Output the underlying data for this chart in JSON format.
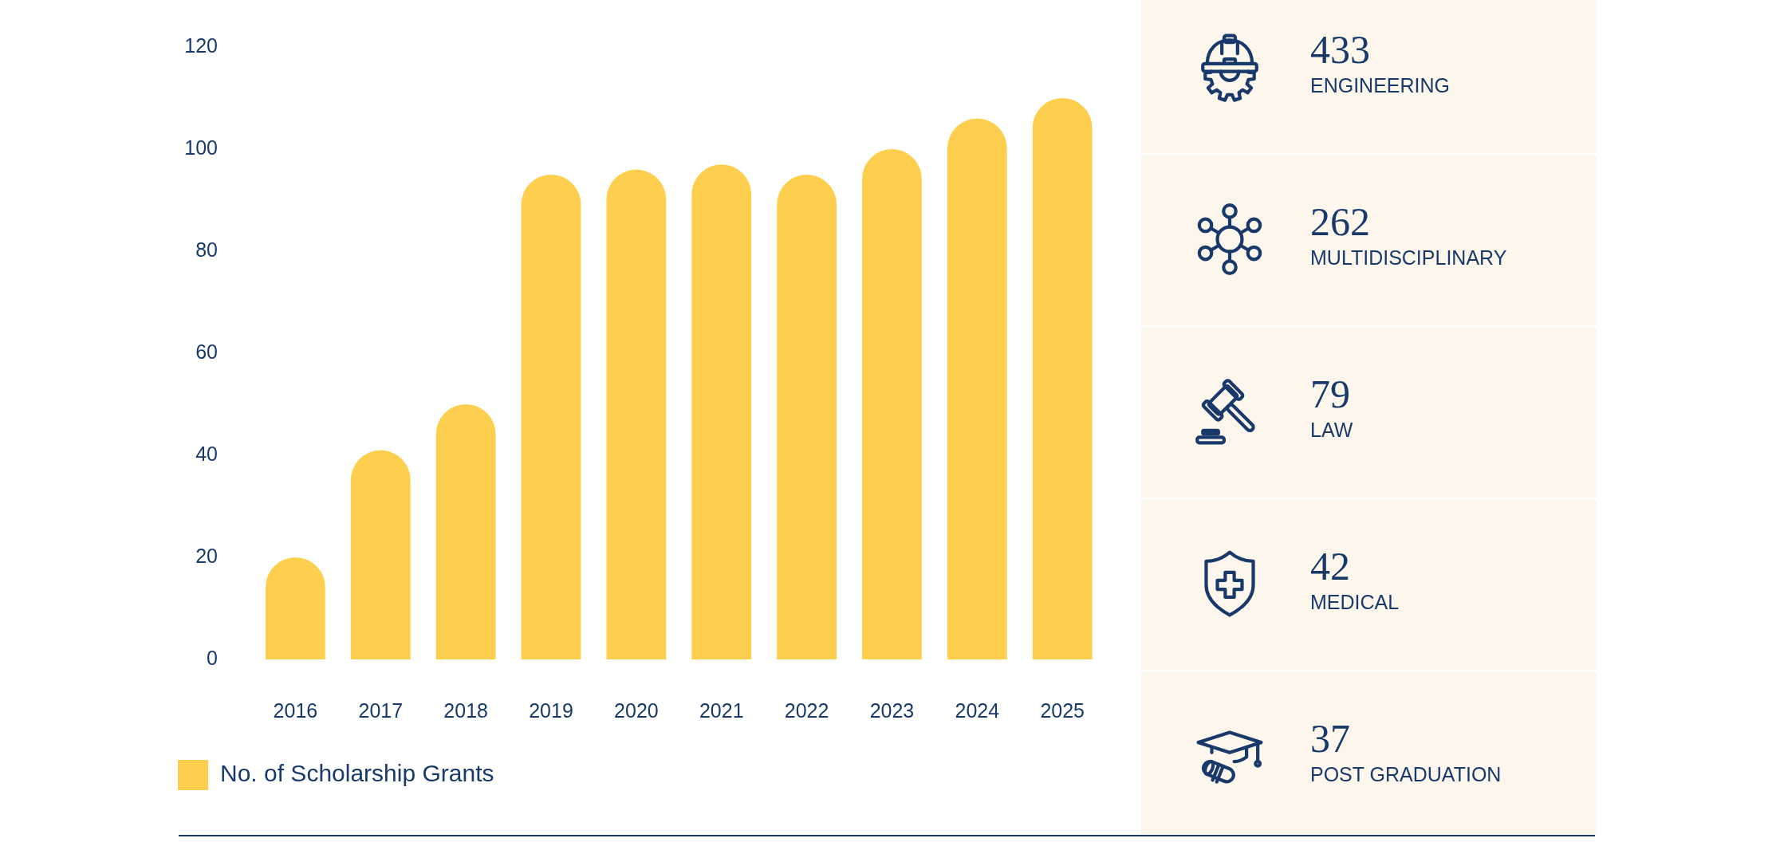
{
  "chart_data": [
    {
      "type": "bar",
      "categories": [
        "2016",
        "2017",
        "2018",
        "2019",
        "2020",
        "2021",
        "2022",
        "2023",
        "2024",
        "2025"
      ],
      "series": [
        {
          "name": "No. of Scholarship Grants",
          "color": "#fecf4f",
          "values": [
            20,
            41,
            50,
            95,
            96,
            97,
            95,
            100,
            106,
            110
          ]
        }
      ],
      "ylim": [
        0,
        120
      ],
      "yticks": [
        0,
        20,
        40,
        60,
        80,
        100,
        120
      ],
      "legend": "bottom left"
    },
    {
      "type": "other",
      "categories": [
        "ENGINEERING",
        "MULTIDISCIPLINARY",
        "LAW",
        "MEDICAL",
        "POST GRADUATION"
      ],
      "values": [
        433,
        262,
        79,
        42,
        37
      ],
      "data_labels": true
    }
  ]
}
